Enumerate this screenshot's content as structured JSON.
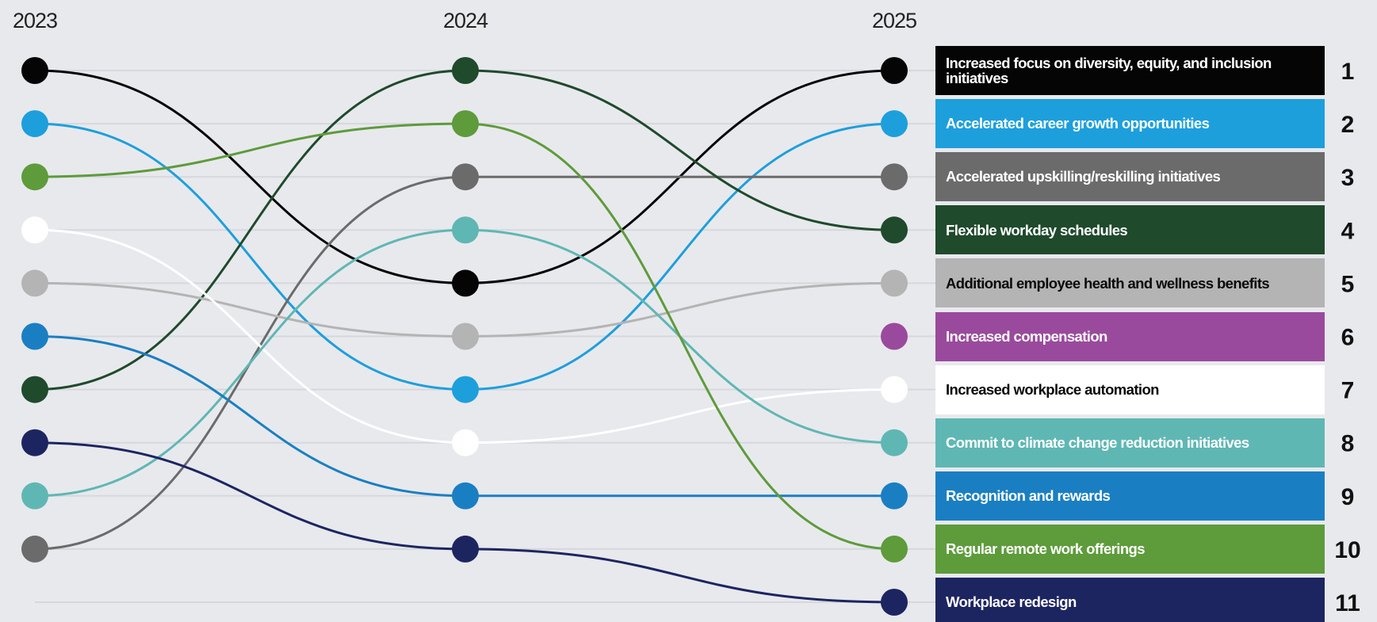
{
  "chart_data": {
    "type": "bump",
    "categories": [
      "2023",
      "2024",
      "2025"
    ],
    "ylim": [
      11,
      1
    ],
    "yticks": [
      1,
      2,
      3,
      4,
      5,
      6,
      7,
      8,
      9,
      10,
      11
    ],
    "grid": true,
    "series": [
      {
        "name": "Increased focus on diversity, equity, and inclusion initiatives",
        "color": "#050505",
        "values": [
          1,
          5,
          1
        ]
      },
      {
        "name": "Accelerated career growth opportunities",
        "color": "#1d9fdc",
        "values": [
          2,
          7,
          2
        ]
      },
      {
        "name": "Accelerated upskilling/reskilling initiatives",
        "color": "#6b6b6b",
        "values": [
          10,
          3,
          3
        ]
      },
      {
        "name": "Flexible workday schedules",
        "color": "#1f4a2c",
        "values": [
          7,
          1,
          4
        ]
      },
      {
        "name": "Additional employee health and wellness benefits",
        "color": "#b4b4b4",
        "values": [
          5,
          6,
          5
        ]
      },
      {
        "name": "Increased compensation",
        "color": "#9a4a9c",
        "values": [
          null,
          null,
          6
        ]
      },
      {
        "name": "Increased workplace automation",
        "color": "#ffffff",
        "values": [
          4,
          8,
          7
        ]
      },
      {
        "name": "Commit to climate change reduction initiatives",
        "color": "#5fb7b4",
        "values": [
          9,
          4,
          8
        ]
      },
      {
        "name": "Recognition and rewards",
        "color": "#1a7fc2",
        "values": [
          6,
          9,
          9
        ]
      },
      {
        "name": "Regular remote work offerings",
        "color": "#5e9b3b",
        "values": [
          3,
          2,
          10
        ]
      },
      {
        "name": "Workplace redesign",
        "color": "#1d2561",
        "values": [
          8,
          10,
          11
        ]
      }
    ]
  }
}
